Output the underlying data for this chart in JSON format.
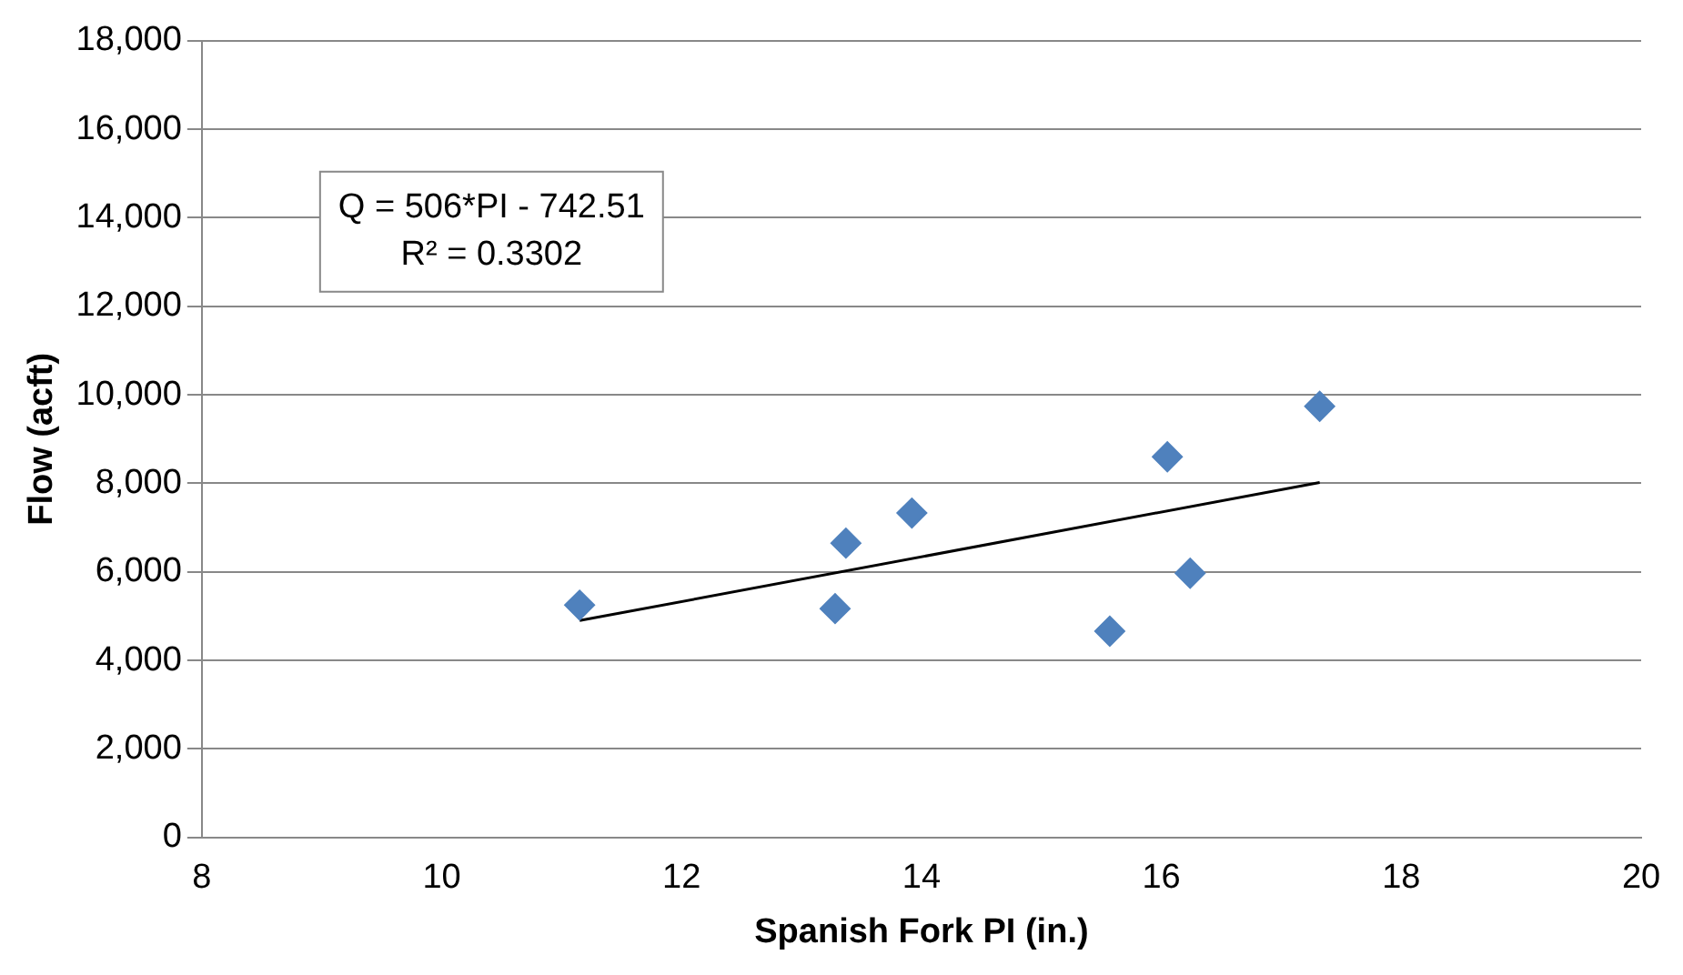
{
  "chart_data": {
    "type": "scatter",
    "xlabel": "Spanish Fork PI (in.)",
    "ylabel": "Flow (acft)",
    "xlim": [
      8,
      20
    ],
    "xticks": [
      8,
      10,
      12,
      14,
      16,
      18,
      20
    ],
    "ylim": [
      0,
      18000
    ],
    "yticks": [
      {
        "value": 0,
        "label": "0"
      },
      {
        "value": 2000,
        "label": "2,000"
      },
      {
        "value": 4000,
        "label": "4,000"
      },
      {
        "value": 6000,
        "label": "6,000"
      },
      {
        "value": 8000,
        "label": "8,000"
      },
      {
        "value": 10000,
        "label": "10,000"
      },
      {
        "value": 12000,
        "label": "12,000"
      },
      {
        "value": 14000,
        "label": "14,000"
      },
      {
        "value": 16000,
        "label": "16,000"
      },
      {
        "value": 18000,
        "label": "18,000"
      }
    ],
    "grid": "y",
    "legend": false,
    "marker": "diamond",
    "series": [
      {
        "type": "scatter",
        "color": "#4f81bd",
        "x": [
          11.15,
          13.28,
          13.37,
          13.92,
          15.57,
          16.05,
          16.24,
          17.32
        ],
        "values": [
          5250,
          5170,
          6650,
          7330,
          4660,
          8600,
          5970,
          9740
        ]
      },
      {
        "type": "line",
        "color": "#000000",
        "marker": "none",
        "x": [
          11.15,
          17.32
        ],
        "values": [
          4900,
          8020
        ]
      }
    ],
    "annotations": [
      "Q = 506*PI - 742.51",
      "R² = 0.3302"
    ]
  }
}
